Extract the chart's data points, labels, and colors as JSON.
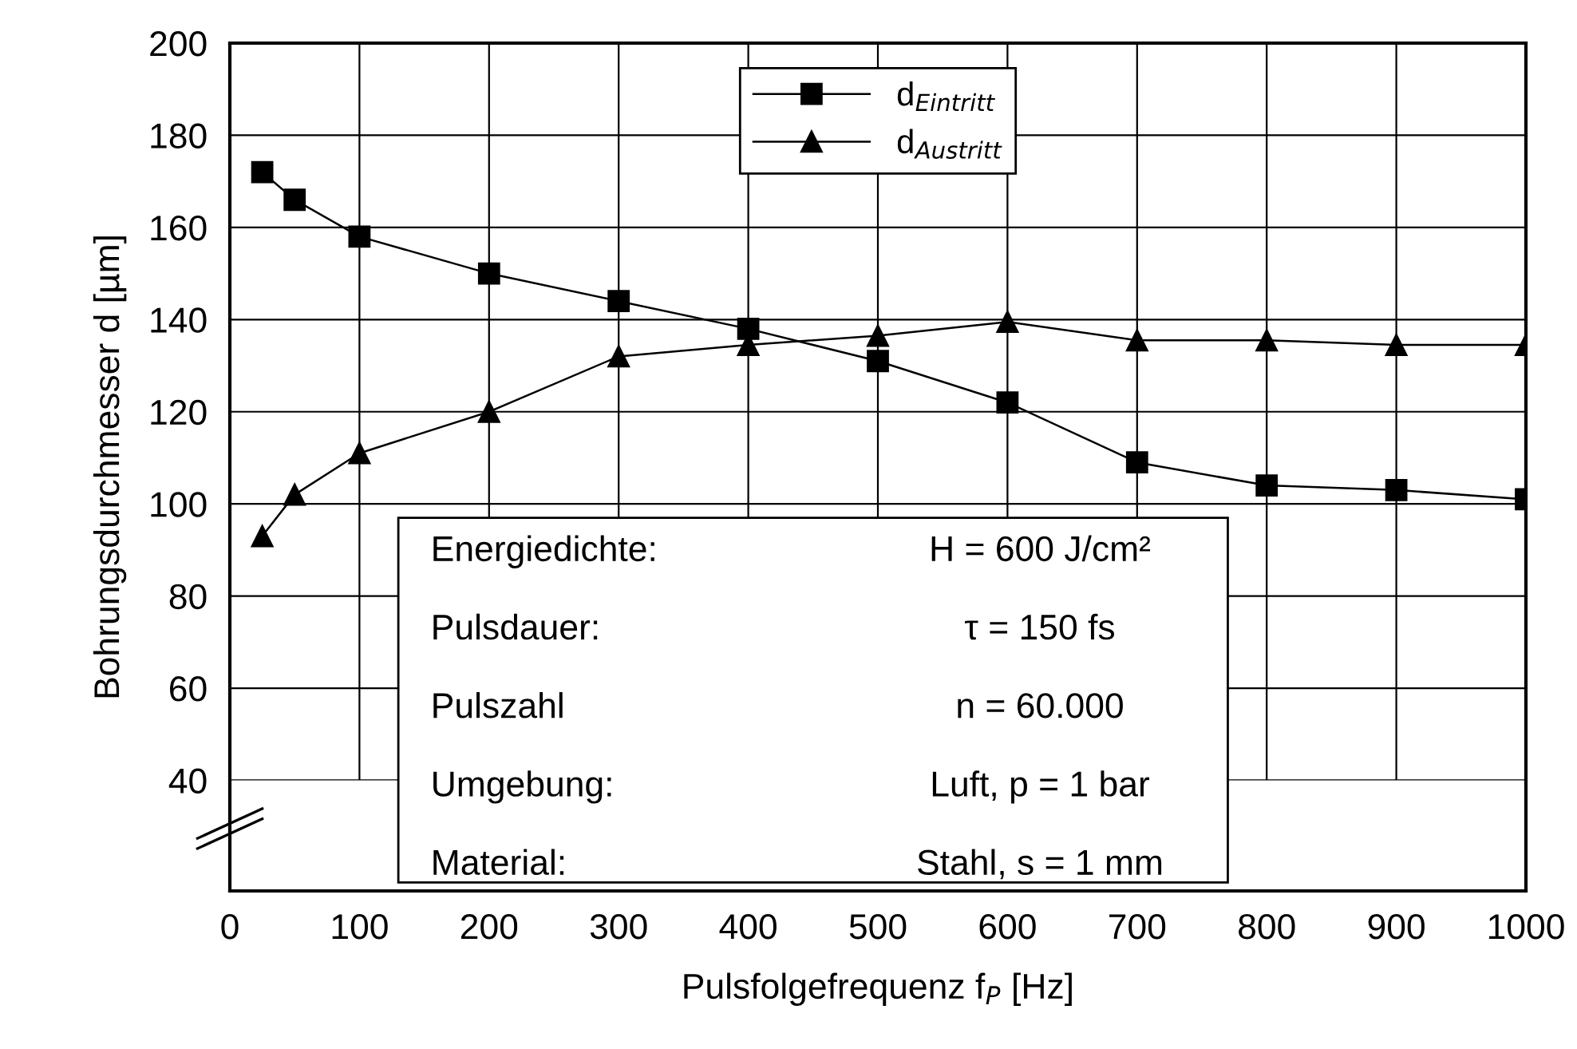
{
  "chart_data": {
    "type": "line",
    "xlabel": "Pulsfolgefrequenz f$_{P}$ [Hz]",
    "ylabel": "Bohrungsdurchmesser d [µm]",
    "x": [
      25,
      50,
      100,
      200,
      300,
      400,
      500,
      600,
      700,
      800,
      900,
      1000
    ],
    "series": [
      {
        "name": "d$_{Eintritt}$",
        "color": "#000000",
        "marker": "square",
        "values": [
          172,
          166,
          158,
          150,
          144,
          138,
          131,
          122,
          109,
          104,
          103,
          101
        ]
      },
      {
        "name": "d$_{Austritt}$",
        "color": "#000000",
        "marker": "triangle",
        "values": [
          93,
          102,
          111,
          120,
          132,
          134.5,
          136.5,
          139.5,
          135.5,
          135.5,
          134.5,
          134.5
        ]
      }
    ],
    "xlim": [
      0,
      1000
    ],
    "xticks": [
      0,
      100,
      200,
      300,
      400,
      500,
      600,
      700,
      800,
      900,
      1000
    ],
    "ylim": [
      16,
      200
    ],
    "yticks": [
      40,
      60,
      80,
      100,
      120,
      140,
      160,
      180,
      200
    ],
    "grid": true,
    "legend": "top",
    "line_style": "solid",
    "annotations": [
      "Energiedichte:",
      "H = 600 J/cm²",
      "Pulsdauer:",
      "τ = 150 fs",
      "Pulszahl",
      "n = 60.000",
      "Umgebung:",
      "Luft, p = 1 bar",
      "Material:",
      "Stahl, s = 1 mm"
    ]
  }
}
